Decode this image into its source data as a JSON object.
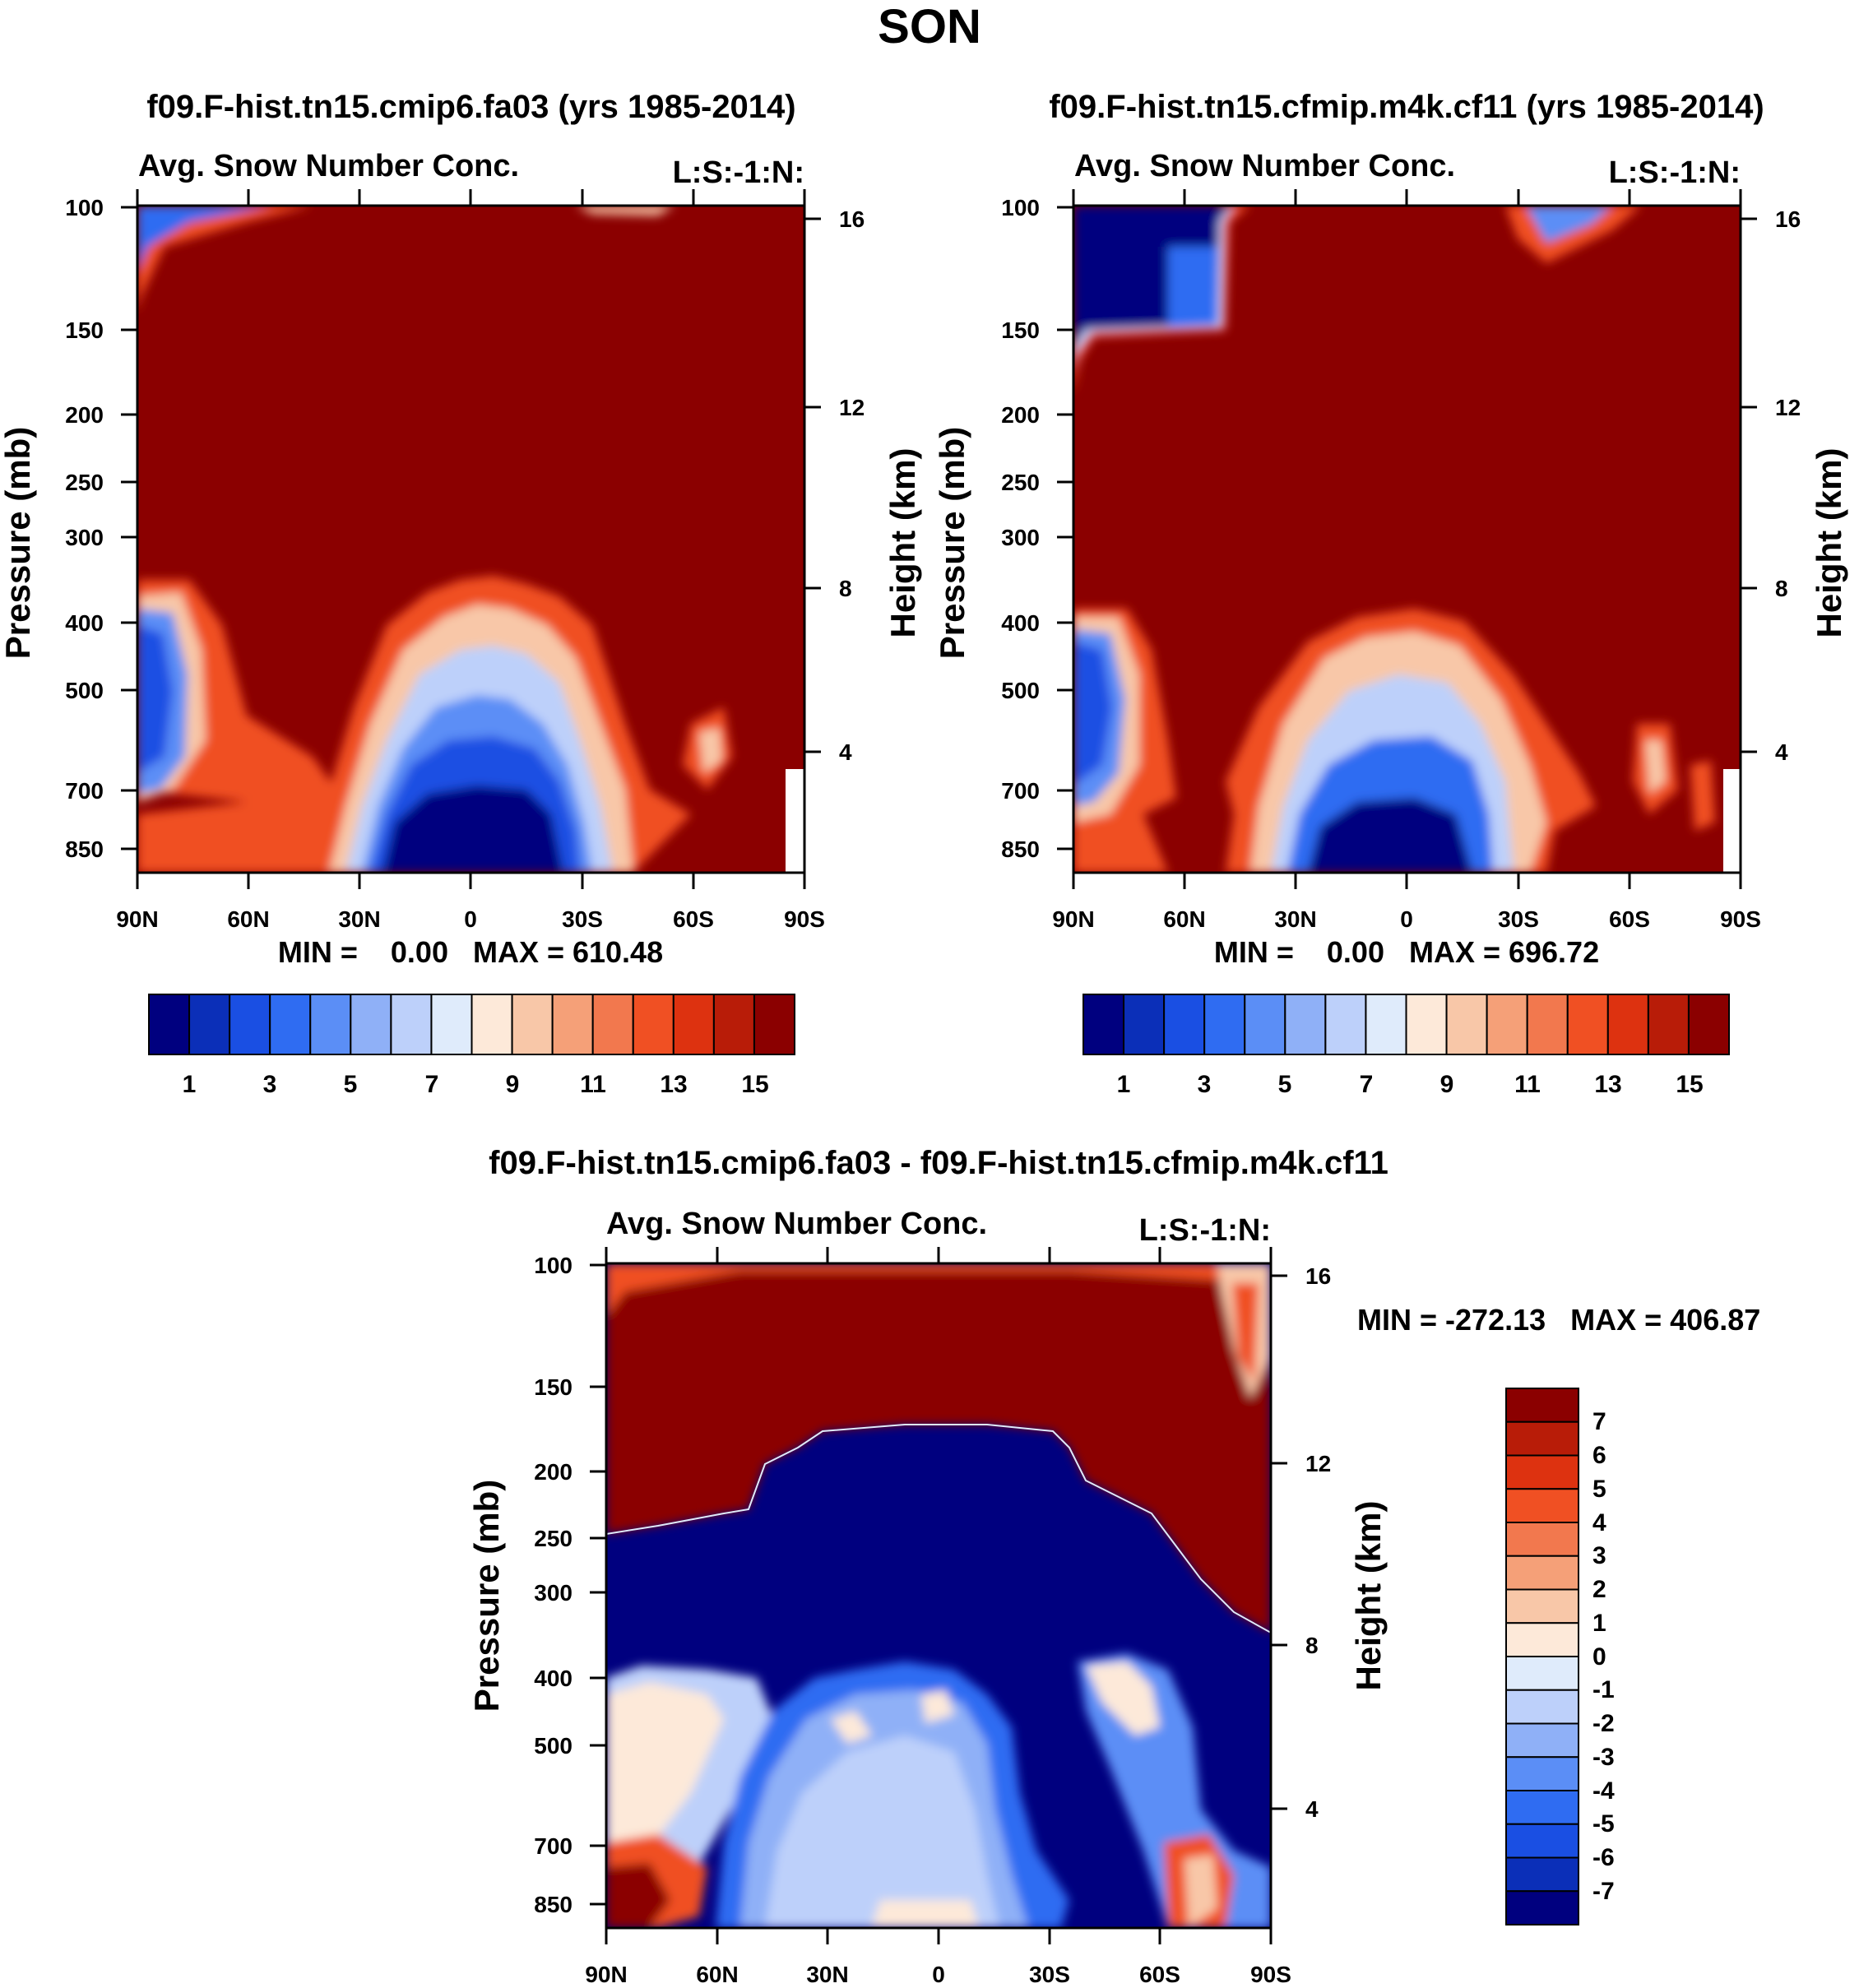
{
  "page_title": "SON",
  "chart_data": [
    {
      "type": "heatmap",
      "title": "f09.F-hist.tn15.cmip6.fa03 (yrs 1985-2014)",
      "subtitle_left": "Avg. Snow Number Conc.",
      "subtitle_right": "L:S:-1:N:",
      "ylabel": "Pressure (mb)",
      "ylabel_right": "Height (km)",
      "xticks": [
        "90N",
        "60N",
        "30N",
        "0",
        "30S",
        "60S",
        "90S"
      ],
      "yticks": [
        "100",
        "150",
        "200",
        "250",
        "300",
        "400",
        "500",
        "700",
        "850"
      ],
      "yticks_right": [
        "16",
        "12",
        "8",
        "4"
      ],
      "stats": "MIN =    0.00   MAX = 610.48",
      "colorbar": {
        "labels": [
          "1",
          "3",
          "5",
          "7",
          "9",
          "11",
          "13",
          "15"
        ],
        "colors": [
          "#00007f",
          "#0b2fb8",
          "#1a4fe3",
          "#2f6cf2",
          "#5b8ef6",
          "#8fb0f7",
          "#bdd0fa",
          "#dfebfb",
          "#fde9d9",
          "#f8c7a8",
          "#f5a078",
          "#f2784e",
          "#f05023",
          "#dd3210",
          "#b81c08",
          "#8b0000"
        ]
      }
    },
    {
      "type": "heatmap",
      "title": "f09.F-hist.tn15.cfmip.m4k.cf11 (yrs 1985-2014)",
      "subtitle_left": "Avg. Snow Number Conc.",
      "subtitle_right": "L:S:-1:N:",
      "ylabel": "Pressure (mb)",
      "ylabel_right": "Height (km)",
      "xticks": [
        "90N",
        "60N",
        "30N",
        "0",
        "30S",
        "60S",
        "90S"
      ],
      "yticks": [
        "100",
        "150",
        "200",
        "250",
        "300",
        "400",
        "500",
        "700",
        "850"
      ],
      "yticks_right": [
        "16",
        "12",
        "8",
        "4"
      ],
      "stats": "MIN =    0.00   MAX = 696.72",
      "colorbar": {
        "labels": [
          "1",
          "3",
          "5",
          "7",
          "9",
          "11",
          "13",
          "15"
        ],
        "colors": [
          "#00007f",
          "#0b2fb8",
          "#1a4fe3",
          "#2f6cf2",
          "#5b8ef6",
          "#8fb0f7",
          "#bdd0fa",
          "#dfebfb",
          "#fde9d9",
          "#f8c7a8",
          "#f5a078",
          "#f2784e",
          "#f05023",
          "#dd3210",
          "#b81c08",
          "#8b0000"
        ]
      }
    },
    {
      "type": "heatmap",
      "title": "f09.F-hist.tn15.cmip6.fa03 - f09.F-hist.tn15.cfmip.m4k.cf11",
      "subtitle_left": "Avg. Snow Number Conc.",
      "subtitle_right": "L:S:-1:N:",
      "ylabel": "Pressure (mb)",
      "ylabel_right": "Height (km)",
      "xticks": [
        "90N",
        "60N",
        "30N",
        "0",
        "30S",
        "60S",
        "90S"
      ],
      "yticks": [
        "100",
        "150",
        "200",
        "250",
        "300",
        "400",
        "500",
        "700",
        "850"
      ],
      "yticks_right": [
        "16",
        "12",
        "8",
        "4"
      ],
      "stats": "MIN = -272.13   MAX = 406.87",
      "colorbar": {
        "labels": [
          "7",
          "6",
          "5",
          "4",
          "3",
          "2",
          "1",
          "0",
          "-1",
          "-2",
          "-3",
          "-4",
          "-5",
          "-6",
          "-7"
        ],
        "colors": [
          "#8b0000",
          "#b81c08",
          "#dd3210",
          "#f05023",
          "#f2784e",
          "#f5a078",
          "#f8c7a8",
          "#fde9d9",
          "#dfebfb",
          "#bdd0fa",
          "#8fb0f7",
          "#5b8ef6",
          "#2f6cf2",
          "#1a4fe3",
          "#0b2fb8",
          "#00007f"
        ]
      }
    }
  ]
}
